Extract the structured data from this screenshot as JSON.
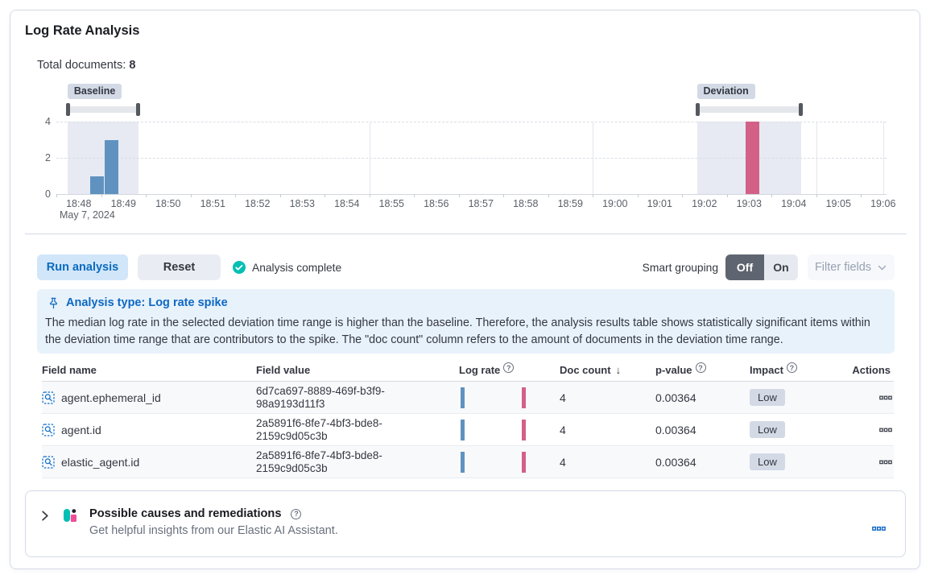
{
  "title": "Log Rate Analysis",
  "summary": {
    "label": "Total documents:",
    "value": "8"
  },
  "chart_data": {
    "type": "bar",
    "x_axis": {
      "date_label": "May 7, 2024",
      "ticks": [
        "18:48",
        "18:49",
        "18:50",
        "18:51",
        "18:52",
        "18:53",
        "18:54",
        "18:55",
        "18:56",
        "18:57",
        "18:58",
        "18:59",
        "19:00",
        "19:01",
        "19:02",
        "19:03",
        "19:04",
        "19:05",
        "19:06"
      ],
      "grid_at": [
        "18:55",
        "19:00",
        "19:05"
      ]
    },
    "y_axis": {
      "ticks": [
        0,
        2,
        4
      ],
      "max": 4
    },
    "series": [
      {
        "name": "baseline",
        "color": "#6092C0",
        "points": [
          {
            "time": "18:48:45",
            "value": 1
          },
          {
            "time": "18:49:05",
            "value": 3
          }
        ]
      },
      {
        "name": "deviation",
        "color": "#D36086",
        "points": [
          {
            "time": "19:03:25",
            "value": 4
          }
        ]
      }
    ],
    "windows": [
      {
        "label": "Baseline",
        "start": "18:48:15",
        "end": "18:49:50"
      },
      {
        "label": "Deviation",
        "start": "19:02:20",
        "end": "19:04:40"
      }
    ]
  },
  "controls": {
    "run": "Run analysis",
    "reset": "Reset",
    "status": "Analysis complete",
    "smart_grouping_label": "Smart grouping",
    "off": "Off",
    "on": "On",
    "filter_fields": "Filter fields"
  },
  "callout": {
    "title": "Analysis type: Log rate spike",
    "body": "The median log rate in the selected deviation time range is higher than the baseline. Therefore, the analysis results table shows statistically significant items within the deviation time range that are contributors to the spike. The \"doc count\" column refers to the amount of documents in the deviation time range."
  },
  "table": {
    "headers": [
      {
        "label": "Field name"
      },
      {
        "label": "Field value"
      },
      {
        "label": "Log rate",
        "info": true
      },
      {
        "label": "Doc count",
        "sort": "desc"
      },
      {
        "label": "p-value",
        "info": true
      },
      {
        "label": "Impact",
        "info": true
      },
      {
        "label": "Actions"
      }
    ],
    "rows": [
      {
        "field": "agent.ephemeral_id",
        "value": "6d7ca697-8889-469f-b3f9-98a9193d11f3",
        "doc_count": "4",
        "p_value": "0.00364",
        "impact": "Low"
      },
      {
        "field": "agent.id",
        "value": "2a5891f6-8fe7-4bf3-bde8-2159c9d05c3b",
        "doc_count": "4",
        "p_value": "0.00364",
        "impact": "Low"
      },
      {
        "field": "elastic_agent.id",
        "value": "2a5891f6-8fe7-4bf3-bde8-2159c9d05c3b",
        "doc_count": "4",
        "p_value": "0.00364",
        "impact": "Low"
      }
    ]
  },
  "accordion": {
    "title": "Possible causes and remediations",
    "subtitle": "Get helpful insights from our Elastic AI Assistant."
  },
  "icons": {
    "sort_desc": "↓",
    "question": "?"
  },
  "colors": {
    "baseline": "#6092C0",
    "deviation": "#D36086",
    "accent_blue": "#0B64C8",
    "teal": "#00BFB3"
  }
}
